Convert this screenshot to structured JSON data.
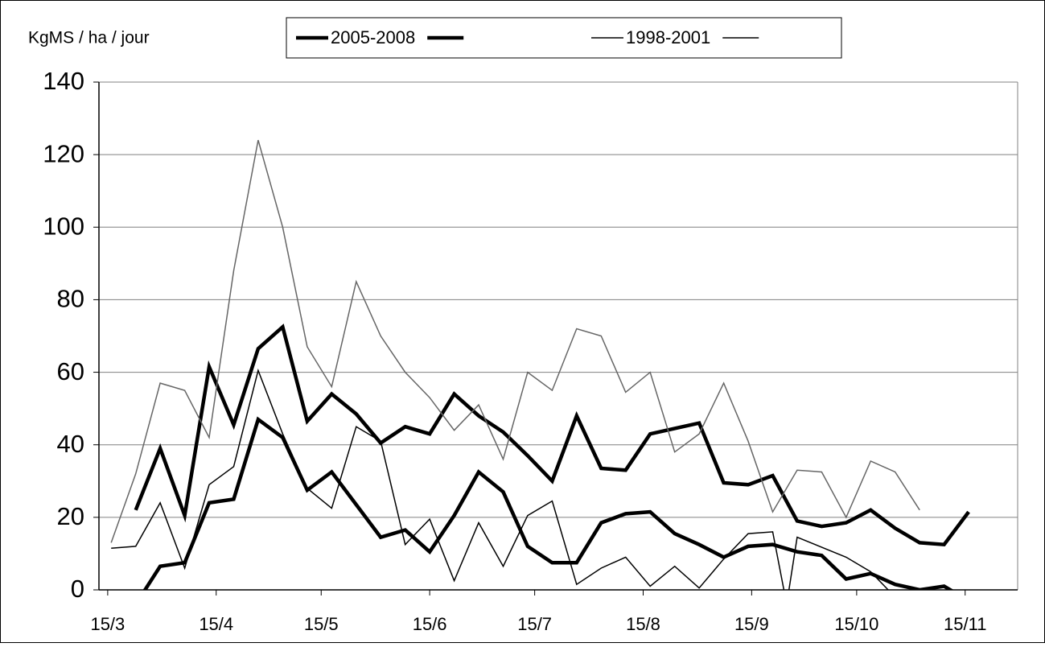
{
  "chart_data": {
    "type": "line",
    "y_label": "KgMS / ha / jour",
    "xlim": [
      -2.5,
      260
    ],
    "xticks": [
      {
        "value": 0,
        "label": "15/3"
      },
      {
        "value": 31,
        "label": "15/4"
      },
      {
        "value": 61,
        "label": "15/5"
      },
      {
        "value": 92,
        "label": "15/6"
      },
      {
        "value": 122,
        "label": "15/7"
      },
      {
        "value": 153,
        "label": "15/8"
      },
      {
        "value": 184,
        "label": "15/9"
      },
      {
        "value": 214,
        "label": "15/10"
      },
      {
        "value": 245,
        "label": "15/11"
      }
    ],
    "ylim": [
      0,
      140
    ],
    "yticks": [
      0,
      20,
      40,
      60,
      80,
      100,
      120,
      140
    ],
    "grid": true,
    "series": [
      {
        "name": "2005-2008",
        "color": "#000000",
        "line_width": 4.5,
        "x": [
          8,
          15,
          22,
          29,
          36,
          43,
          50,
          57,
          64,
          71,
          78,
          85,
          92,
          99,
          106,
          113,
          120,
          127,
          134,
          141,
          148,
          155,
          162,
          169,
          176,
          183,
          190,
          197,
          204,
          211,
          218,
          225,
          232,
          239,
          246
        ],
        "values": [
          22,
          39,
          20.5,
          61.5,
          45.5,
          66.5,
          72.5,
          46.5,
          54,
          48.5,
          40.5,
          45,
          43,
          54,
          48,
          43.5,
          37,
          30,
          48,
          33.5,
          33,
          43,
          44.5,
          46,
          29.5,
          29,
          31.5,
          19,
          17.5,
          18.5,
          22,
          17,
          13,
          12.5,
          21.5
        ]
      },
      {
        "name": "1998-2001",
        "color": "#666666",
        "line_width": 1.5,
        "x": [
          1,
          8,
          15,
          22,
          29,
          36,
          43,
          50,
          57,
          64,
          71,
          78,
          85,
          92,
          99,
          106,
          113,
          120,
          127,
          134,
          141,
          148,
          155,
          162,
          169,
          176,
          183,
          190,
          197,
          204,
          211,
          218,
          225,
          232
        ],
        "values": [
          13,
          32,
          57,
          55,
          42,
          88,
          124,
          100,
          67,
          56,
          85,
          70,
          60,
          53,
          44,
          51,
          36,
          60,
          55,
          72,
          70,
          54.5,
          60,
          38,
          43,
          57,
          41,
          21.5,
          33,
          32.5,
          20,
          35.5,
          32.5,
          22
        ]
      },
      {
        "color": "#000000",
        "line_width": 4.5,
        "x": [
          8,
          15,
          22,
          29,
          36,
          43,
          50,
          57,
          64,
          71,
          78,
          85,
          92,
          99,
          106,
          113,
          120,
          127,
          134,
          141,
          148,
          155,
          162,
          169,
          176,
          183,
          190,
          197,
          204,
          211,
          218,
          225,
          232,
          239,
          246
        ],
        "values": [
          -4,
          6.5,
          7.5,
          24,
          25,
          47,
          42,
          27.5,
          32.5,
          23.5,
          14.5,
          16.5,
          10.5,
          20.5,
          32.5,
          27,
          12,
          7.5,
          7.5,
          18.5,
          21,
          21.5,
          15.5,
          12.5,
          9,
          12,
          12.5,
          10.5,
          9.5,
          3,
          4.5,
          1.5,
          0,
          1,
          -3
        ]
      },
      {
        "color": "#000000",
        "line_width": 1.5,
        "x": [
          1,
          8,
          15,
          22,
          29,
          36,
          43,
          50,
          57,
          64,
          71,
          78,
          85,
          92,
          99,
          106,
          113,
          120,
          127,
          134,
          141,
          148,
          155,
          162,
          169,
          176,
          183,
          190,
          194,
          197,
          211,
          218,
          225
        ],
        "values": [
          11.5,
          12,
          24,
          6,
          29,
          34,
          60.5,
          43,
          28,
          22.5,
          45,
          41,
          12.5,
          19.5,
          2.5,
          18.5,
          6.5,
          20.5,
          24.5,
          1.5,
          6,
          9,
          1,
          6.5,
          0.5,
          8.5,
          15.5,
          16,
          -4,
          14.5,
          9,
          5,
          -2
        ]
      }
    ]
  }
}
